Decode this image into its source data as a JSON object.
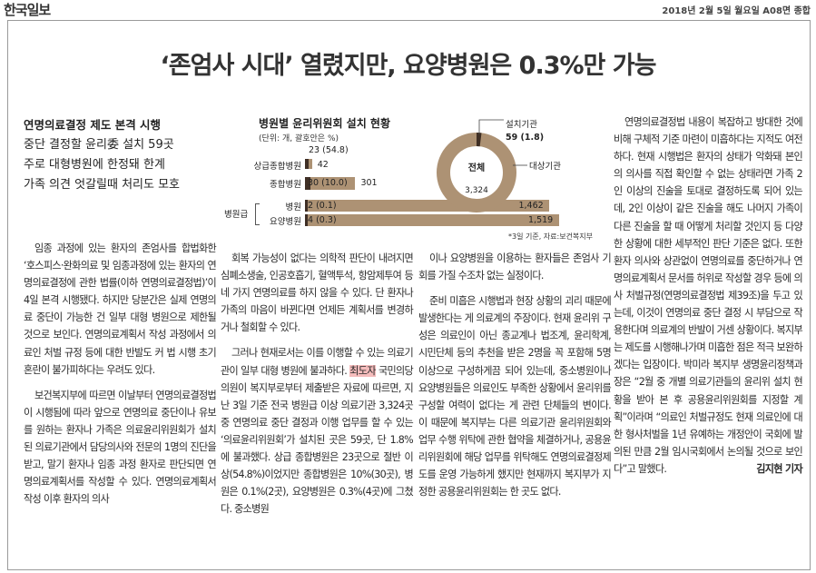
{
  "masthead": "한국일보",
  "dateline": "2018년 2월 5일 월요일 A08면 종합",
  "headline": "‘존엄사 시대’ 열렸지만, 요양병원은 0.3%만 가능",
  "subheads": [
    "연명의료결정 제도 본격 시행",
    "중단 결정할 윤리委 설치 59곳",
    "주로 대형병원에 한정돼 한계",
    "가족 의견 엇갈릴때 처리도 모호"
  ],
  "col1": [
    "임종 과정에 있는 환자의 존엄사를 합법화한 ‘호스피스·완화의료 및 임종과정에 있는 환자의 연명의료결정에 관한 법률(이하 연명의료결정법)’이 4일 본격 시행됐다. 하지만 당분간은 실제 연명의료 중단이 가능한 건 일부 대형 병원으로 제한될 것으로 보인다. 연명의료계획서 작성 과정에서 의료인 처벌 규정 등에 대한 반발도 커 법 시행 초기 혼란이 불가피하다는 우려도 있다.",
    "보건복지부에 따르면 이날부터 연명의료결정법이 시행됨에 따라 앞으로 연명의료 중단이나 유보를 원하는 환자나 가족은 의료윤리위원회가 설치된 의료기관에서 담당의사와 전문의 1명의 진단을 받고, 말기 환자나 임종 과정 환자로 판단되면 연명의료계획서를 작성할 수 있다. 연명의료계획서 작성 이후 환자의 의사"
  ],
  "col2": [
    {
      "text": "회복 가능성이 없다는 의학적 판단이 내려지면 심폐소생술, 인공호흡기, 혈액투석, 항암제투여 등 네 가지 연명의료를 하지 않을 수 있다. 단 환자나 가족의 마음이 바뀐다면 언제든 계획서를 변경하거나 철회할 수 있다."
    },
    {
      "pre": "그러나 현재로서는 이를 이행할 수 있는 의료기관이 일부 대형 병원에 불과하다. ",
      "hl": "최도자",
      "post": " 국민의당 의원이 복지부로부터 제출받은 자료에 따르면, 지난 3일 기준 전국 병원급 이상 의료기관 3,324곳 중 연명의료 중단 결정과 이행 업무를 할 수 있는 ‘의료윤리위원회’가 설치된 곳은 59곳, 단 1.8%에 불과했다. 상급 종합병원은 23곳으로 절반 이상(54.8%)이었지만 종합병원은 10%(30곳), 병원은 0.1%(2곳), 요양병원은 0.3%(4곳)에 그쳤다. 중소병원"
    }
  ],
  "col3": [
    "이나 요양병원을 이용하는 환자들은 존엄사 기회를 가질 수조차 없는 실정이다.",
    "준비 미흡은 시행법과 현장 상황의 괴리 때문에 발생한다는 게 의료계의 주장이다. 현재 윤리위 구성은 의료인이 아닌 종교계나 법조계, 윤리학계, 시민단체 등의 추천을 받은 2명을 꼭 포함해 5명 이상으로 구성하게끔 되어 있는데, 중소병원이나 요양병원들은 의료인도 부족한 상황에서 윤리위를 구성할 여력이 없다는 게 관련 단체들의 변이다. 이 때문에 복지부는 다른 의료기관 윤리위원회와 업무 수행 위탁에 관한 협약을 체결하거나, 공용윤리위원회에 해당 업무를 위탁해도 연명의료결정제도를 운영 가능하게 했지만 현재까지 복지부가 지정한 공용윤리위원회는 한 곳도 없다."
  ],
  "col4": [
    "연명의료결정법 내용이 복잡하고 방대한 것에 비해 구체적 기준 마련이 미흡하다는 지적도 여전하다. 현재 시행법은 환자의 상태가 악화돼 본인의 의사를 직접 확인할 수 없는 상태라면 가족 2인 이상의 진술을 토대로 결정하도록 되어 있는데, 2인 이상이 같은 진술을 해도 나머지 가족이 다른 진술을 할 때 어떻게 처리할 것인지 등 다양한 상황에 대한 세부적인 판단 기준은 없다. 또한 환자 의사와 상관없이 연명의료를 중단하거나 연명의료계획서 문서를 허위로 작성할 경우 등에 의사 처벌규정(연명의료결정법 제39조)을 두고 있는데, 이것이 연명의료 중단 결정 시 부담으로 작용한다며 의료계의 반발이 거센 상황이다. 복지부는 제도를 시행해나가며 미흡한 점은 적극 보완하겠다는 입장이다. 박미라 복지부 생명윤리정책과장은 “2월 중 개별 의료기관들의 윤리위 설치 현황을 받아 본 후 공용윤리위원회를 지정할 계획”이라며 “의료인 처벌규정도 현재 의료인에 대한 형사처벌을 1년 유예하는 개정안이 국회에 발의된 만큼 2월 임시국회에서 논의될 것으로 보인다”고 말했다."
  ],
  "byline": "김지현 기자",
  "chart_data": {
    "type": "bar",
    "title": "병원별 윤리위원회 설치 현황",
    "unit_note": "(단위: 개, 괄호안은 %)",
    "group_label": "병원급",
    "categories": [
      "상급종합병원",
      "종합병원",
      "병원",
      "요양병원"
    ],
    "series": [
      {
        "name": "설치기관",
        "values": [
          23,
          30,
          2,
          4
        ],
        "labels": [
          "23 (54.8)",
          "30 (10.0)",
          "2 (0.1)",
          "4 (0.3)"
        ]
      },
      {
        "name": "대상기관",
        "values": [
          42,
          301,
          1462,
          1519
        ],
        "labels": [
          "42",
          "301",
          "1,462",
          "1,519"
        ]
      }
    ],
    "donut": {
      "center_label": "전체",
      "center_value": "3,324",
      "installed_label": "설치기관",
      "installed_value": "59 (1.8)",
      "target_label": "대상기관",
      "installed_fraction": 0.018
    },
    "note": "*3일 기준, 자료:보건복지부",
    "colors": {
      "installed": "#3f2f25",
      "target": "#ad9274"
    }
  }
}
